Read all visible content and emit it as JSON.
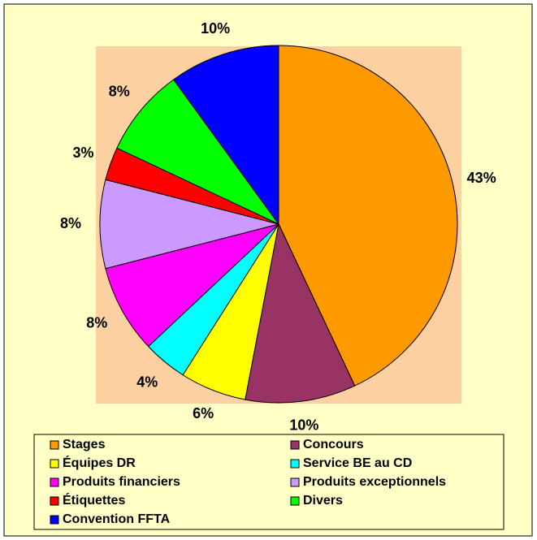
{
  "chart_data": {
    "type": "pie",
    "categories": [
      "Stages",
      "Concours",
      "Équipes DR",
      "Service BE au CD",
      "Produits financiers",
      "Produits exceptionnels",
      "Étiquettes",
      "Divers",
      "Convention FFTA"
    ],
    "values": [
      43,
      10,
      6,
      4,
      8,
      8,
      3,
      8,
      10
    ],
    "value_labels": [
      "43%",
      "10%",
      "6%",
      "4%",
      "8%",
      "8%",
      "3%",
      "8%",
      "10%"
    ],
    "colors": [
      "#ff9900",
      "#993366",
      "#ffff00",
      "#00ffff",
      "#ff00ff",
      "#cc99ff",
      "#ff0000",
      "#00ff00",
      "#0000ff"
    ],
    "legend": "bottom"
  }
}
